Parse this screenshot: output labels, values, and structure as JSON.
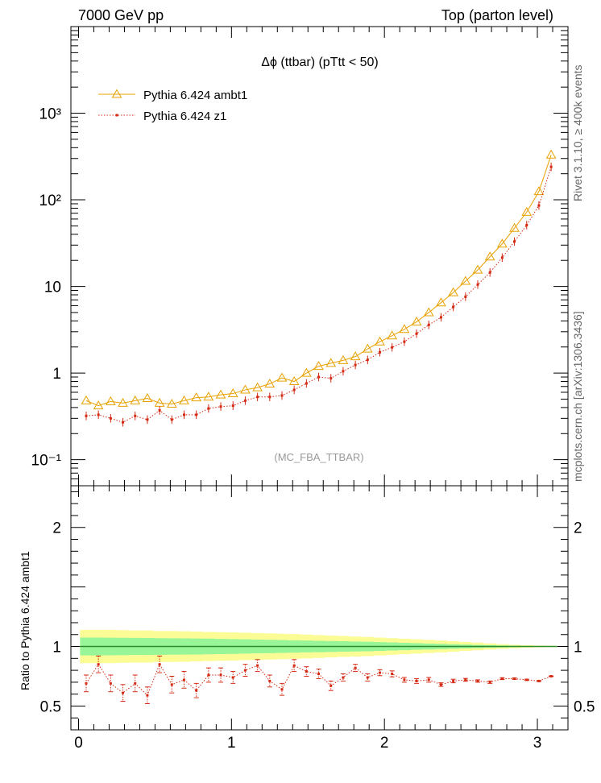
{
  "header": {
    "left": "7000 GeV pp",
    "right": "Top (parton level)"
  },
  "side_labels": {
    "rivet": "Rivet 3.1.10, ≥ 400k events",
    "mcplots": "mcplots.cern.ch [arXiv:1306.3436]"
  },
  "colors": {
    "ambt1": "#e8a000",
    "z1": "#d42a14",
    "band_inner": "#98f598",
    "band_outer": "#fcfc96"
  },
  "chart_data": [
    {
      "type": "line",
      "title": "Δϕ (ttbar) (pTtt < 50)",
      "watermark": "(MC_FBA_TTBAR)",
      "yscale": "log",
      "xlim": [
        -0.05,
        3.2
      ],
      "ylim": [
        0.05,
        10000
      ],
      "y_tick_labels": [
        "10⁻¹",
        "1",
        "10",
        "10²",
        "10³"
      ],
      "y_ticks": [
        0.1,
        1,
        10,
        100,
        1000
      ],
      "legend_position": "top-left",
      "x": [
        0.05,
        0.13,
        0.21,
        0.29,
        0.37,
        0.45,
        0.53,
        0.61,
        0.69,
        0.77,
        0.85,
        0.93,
        1.01,
        1.09,
        1.17,
        1.25,
        1.33,
        1.41,
        1.49,
        1.57,
        1.65,
        1.73,
        1.81,
        1.89,
        1.97,
        2.05,
        2.13,
        2.21,
        2.29,
        2.37,
        2.45,
        2.53,
        2.61,
        2.69,
        2.77,
        2.85,
        2.93,
        3.01,
        3.09
      ],
      "series": [
        {
          "name": "Pythia 6.424 ambt1",
          "marker": "open-triangle",
          "values": [
            0.48,
            0.42,
            0.47,
            0.45,
            0.48,
            0.51,
            0.45,
            0.44,
            0.48,
            0.52,
            0.53,
            0.56,
            0.58,
            0.64,
            0.68,
            0.75,
            0.88,
            0.8,
            1.0,
            1.2,
            1.3,
            1.4,
            1.55,
            1.9,
            2.3,
            2.7,
            3.2,
            3.9,
            5.0,
            6.5,
            8.5,
            11.5,
            15.5,
            22,
            31,
            47,
            72,
            125,
            330
          ]
        },
        {
          "name": "Pythia 6.424 z1",
          "marker": "dot",
          "line": "dotted",
          "values": [
            0.32,
            0.33,
            0.3,
            0.27,
            0.32,
            0.29,
            0.37,
            0.29,
            0.33,
            0.33,
            0.39,
            0.41,
            0.42,
            0.48,
            0.53,
            0.53,
            0.55,
            0.64,
            0.76,
            0.9,
            0.87,
            1.05,
            1.24,
            1.42,
            1.74,
            1.98,
            2.3,
            2.85,
            3.6,
            4.4,
            5.8,
            7.6,
            10.5,
            14.5,
            21.5,
            33,
            51,
            86,
            240
          ]
        }
      ]
    },
    {
      "type": "line",
      "ylabel": "Ratio to Pythia 6.424 ambt1",
      "xlim": [
        -0.05,
        3.2
      ],
      "ylim": [
        0.3,
        2.35
      ],
      "x_ticks": [
        0,
        1,
        2,
        3
      ],
      "x_tick_labels": [
        "0",
        "1",
        "2",
        "3"
      ],
      "y_ticks": [
        0.5,
        1,
        2
      ],
      "y_tick_labels": [
        "0.5",
        "1",
        "2"
      ],
      "reference": 1,
      "band_outer_halfwidth": [
        0.14,
        0.14,
        0.14,
        0.137,
        0.135,
        0.135,
        0.13,
        0.13,
        0.128,
        0.125,
        0.122,
        0.12,
        0.118,
        0.115,
        0.113,
        0.11,
        0.107,
        0.104,
        0.1,
        0.096,
        0.092,
        0.088,
        0.084,
        0.08,
        0.075,
        0.07,
        0.065,
        0.06,
        0.055,
        0.05,
        0.044,
        0.038,
        0.032,
        0.026,
        0.02,
        0.015,
        0.01,
        0.007,
        0.005
      ],
      "band_inner_halfwidth": [
        0.075,
        0.075,
        0.074,
        0.073,
        0.072,
        0.071,
        0.07,
        0.069,
        0.068,
        0.067,
        0.066,
        0.064,
        0.062,
        0.06,
        0.058,
        0.056,
        0.054,
        0.052,
        0.05,
        0.048,
        0.046,
        0.044,
        0.042,
        0.04,
        0.037,
        0.034,
        0.031,
        0.028,
        0.025,
        0.022,
        0.019,
        0.016,
        0.013,
        0.01,
        0.008,
        0.006,
        0.004,
        0.003,
        0.002
      ],
      "series": [
        {
          "name": "Pythia 6.424 z1",
          "values": [
            0.69,
            0.85,
            0.69,
            0.61,
            0.69,
            0.59,
            0.85,
            0.68,
            0.72,
            0.63,
            0.76,
            0.76,
            0.74,
            0.8,
            0.84,
            0.71,
            0.64,
            0.84,
            0.79,
            0.77,
            0.67,
            0.74,
            0.82,
            0.74,
            0.78,
            0.77,
            0.72,
            0.71,
            0.72,
            0.68,
            0.71,
            0.72,
            0.71,
            0.7,
            0.73,
            0.73,
            0.72,
            0.71,
            0.75
          ],
          "errors": [
            0.07,
            0.07,
            0.07,
            0.07,
            0.07,
            0.07,
            0.07,
            0.07,
            0.07,
            0.06,
            0.06,
            0.06,
            0.05,
            0.05,
            0.05,
            0.05,
            0.05,
            0.05,
            0.04,
            0.04,
            0.04,
            0.03,
            0.03,
            0.03,
            0.025,
            0.025,
            0.02,
            0.02,
            0.02,
            0.015,
            0.015,
            0.012,
            0.01,
            0.01,
            0.008,
            0.006,
            0.005,
            0.004,
            0.003
          ]
        }
      ]
    }
  ]
}
